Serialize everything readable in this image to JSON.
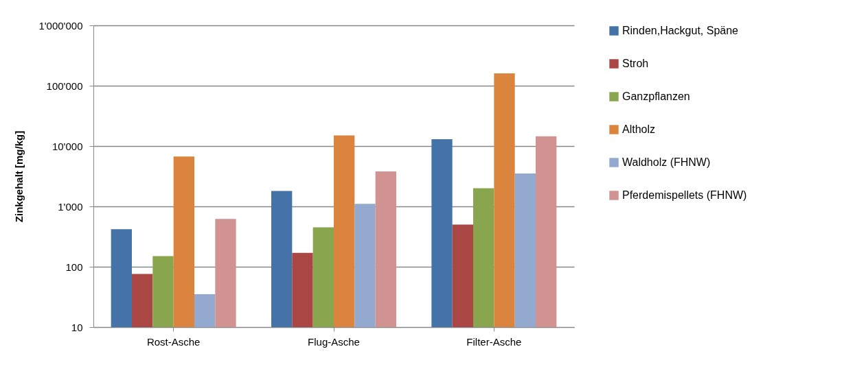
{
  "chart_data": {
    "type": "bar",
    "ylabel": "Zinkgehalt [mg/kg]",
    "categories": [
      "Rost-Asche",
      "Flug-Asche",
      "Filter-Asche"
    ],
    "series": [
      {
        "name": "Rinden,Hackgut, Späne",
        "color": "#4572a7",
        "values": [
          420,
          1800,
          13000
        ]
      },
      {
        "name": "Stroh",
        "color": "#aa4643",
        "values": [
          76,
          170,
          500
        ]
      },
      {
        "name": "Ganzpflanzen",
        "color": "#89a54e",
        "values": [
          150,
          450,
          2000
        ]
      },
      {
        "name": "Altholz",
        "color": "#db843d",
        "values": [
          6700,
          15000,
          160000
        ]
      },
      {
        "name": "Waldholz (FHNW)",
        "color": "#93a9cf",
        "values": [
          35,
          1100,
          3500
        ]
      },
      {
        "name": "Pferdemispellets (FHNW)",
        "color": "#d19392",
        "values": [
          620,
          3800,
          14500
        ]
      }
    ],
    "ylim": [
      10,
      1000000
    ],
    "yticks": [
      {
        "value": 10,
        "label": "10"
      },
      {
        "value": 100,
        "label": "100"
      },
      {
        "value": 1000,
        "label": "1'000"
      },
      {
        "value": 10000,
        "label": "10'000"
      },
      {
        "value": 100000,
        "label": "100'000"
      },
      {
        "value": 1000000,
        "label": "1'000'000"
      }
    ],
    "log": true,
    "grid": "y",
    "legend": "right"
  }
}
